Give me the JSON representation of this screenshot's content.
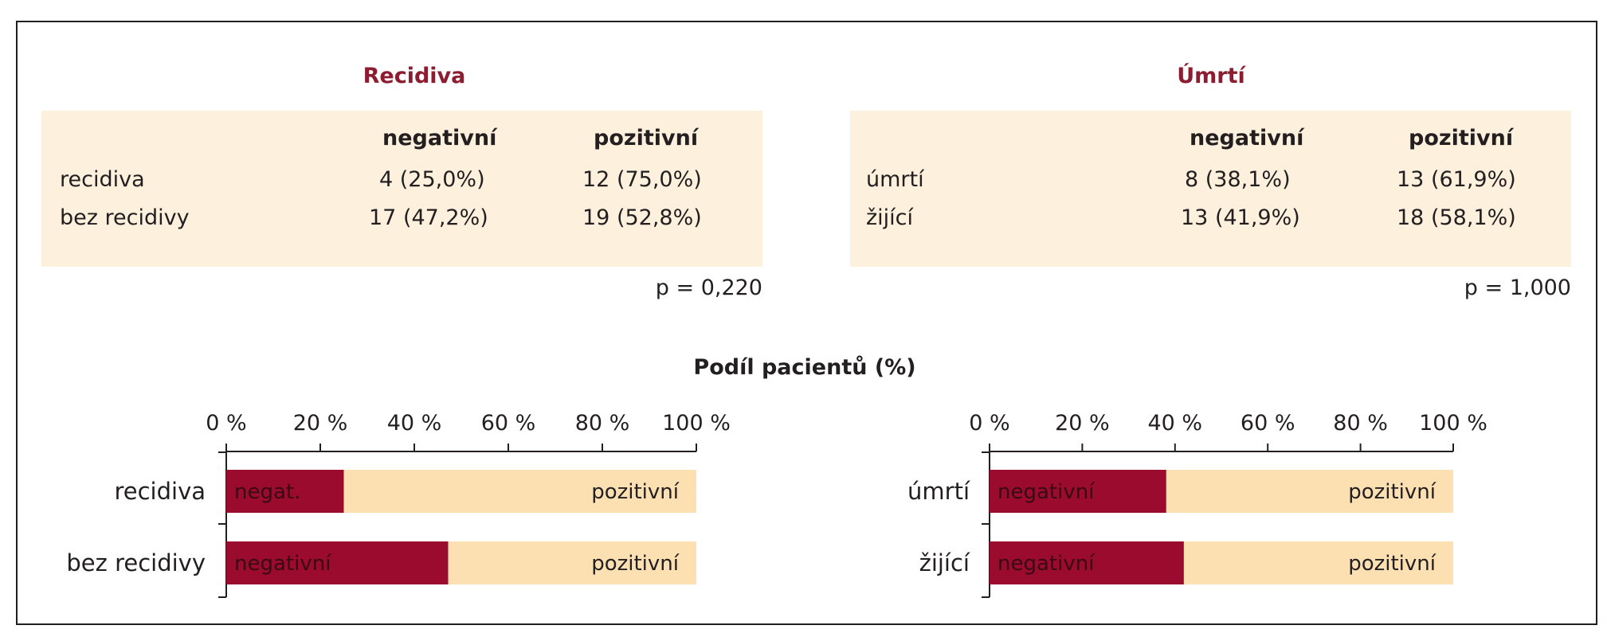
{
  "tables": [
    {
      "title": "Recidiva",
      "columns": [
        "negativní",
        "pozitivní"
      ],
      "rows": [
        {
          "label": "recidiva",
          "negative": "4 (25,0%)",
          "positive": "12 (75,0%)"
        },
        {
          "label": "bez recidivy",
          "negative": "17 (47,2%)",
          "positive": "19 (52,8%)"
        }
      ],
      "p_value": "p = 0,220"
    },
    {
      "title": "Úmrtí",
      "columns": [
        "negativní",
        "pozitivní"
      ],
      "rows": [
        {
          "label": "úmrtí",
          "negative": "8 (38,1%)",
          "positive": "13 (61,9%)"
        },
        {
          "label": "žijící",
          "negative": "13 (41,9%)",
          "positive": "18 (58,1%)"
        }
      ],
      "p_value": "p = 1,000"
    }
  ],
  "chart_title": "Podíl pacientů (%)",
  "colors": {
    "negative": "#9b0b2e",
    "positive": "#fde0b2",
    "title": "#8c1c2f"
  },
  "chart_data": [
    {
      "type": "bar",
      "orientation": "horizontal-stacked",
      "categories": [
        "recidiva",
        "bez recidivy"
      ],
      "series": [
        {
          "values": [
            25.0,
            47.2
          ],
          "labels": [
            "negat.",
            "negativní"
          ]
        },
        {
          "values": [
            75.0,
            52.8
          ],
          "labels": [
            "pozitivní",
            "pozitivní"
          ]
        }
      ],
      "xticks": [
        "0 %",
        "20 %",
        "40 %",
        "60 %",
        "80 %",
        "100 %"
      ],
      "xlim": [
        0,
        100
      ]
    },
    {
      "type": "bar",
      "orientation": "horizontal-stacked",
      "categories": [
        "úmrtí",
        "žijící"
      ],
      "series": [
        {
          "values": [
            38.1,
            41.9
          ],
          "labels": [
            "negativní",
            "negativní"
          ]
        },
        {
          "values": [
            61.9,
            58.1
          ],
          "labels": [
            "pozitivní",
            "pozitivní"
          ]
        }
      ],
      "xticks": [
        "0 %",
        "20 %",
        "40 %",
        "60 %",
        "80 %",
        "100 %"
      ],
      "xlim": [
        0,
        100
      ]
    }
  ]
}
